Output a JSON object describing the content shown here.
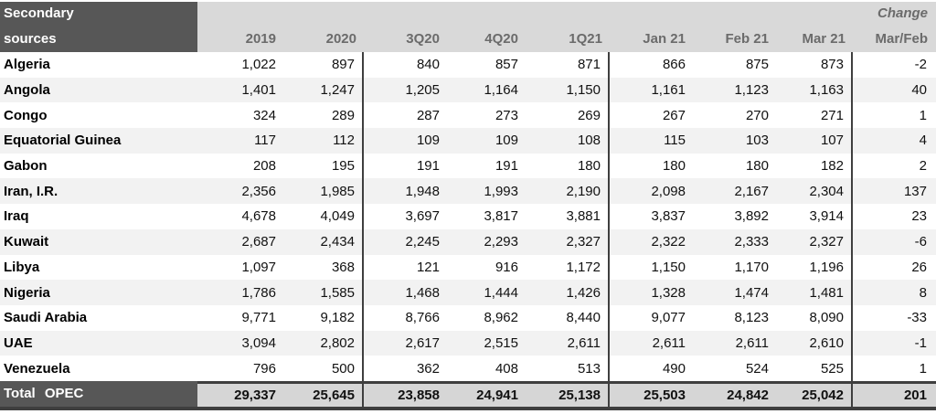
{
  "title": {
    "line1": "Secondary",
    "line2": "sources"
  },
  "change_header": {
    "line1": "Change",
    "line2": "Mar/Feb"
  },
  "columns": [
    "2019",
    "2020",
    "3Q20",
    "4Q20",
    "1Q21",
    "Jan 21",
    "Feb 21",
    "Mar 21"
  ],
  "rows": [
    {
      "country": "Algeria",
      "values": [
        "1,022",
        "897",
        "840",
        "857",
        "871",
        "866",
        "875",
        "873",
        "-2"
      ]
    },
    {
      "country": "Angola",
      "values": [
        "1,401",
        "1,247",
        "1,205",
        "1,164",
        "1,150",
        "1,161",
        "1,123",
        "1,163",
        "40"
      ]
    },
    {
      "country": "Congo",
      "values": [
        "324",
        "289",
        "287",
        "273",
        "269",
        "267",
        "270",
        "271",
        "1"
      ]
    },
    {
      "country": "Equatorial Guinea",
      "values": [
        "117",
        "112",
        "109",
        "109",
        "108",
        "115",
        "103",
        "107",
        "4"
      ]
    },
    {
      "country": "Gabon",
      "values": [
        "208",
        "195",
        "191",
        "191",
        "180",
        "180",
        "180",
        "182",
        "2"
      ]
    },
    {
      "country": "Iran, I.R.",
      "values": [
        "2,356",
        "1,985",
        "1,948",
        "1,993",
        "2,190",
        "2,098",
        "2,167",
        "2,304",
        "137"
      ]
    },
    {
      "country": "Iraq",
      "values": [
        "4,678",
        "4,049",
        "3,697",
        "3,817",
        "3,881",
        "3,837",
        "3,892",
        "3,914",
        "23"
      ]
    },
    {
      "country": "Kuwait",
      "values": [
        "2,687",
        "2,434",
        "2,245",
        "2,293",
        "2,327",
        "2,322",
        "2,333",
        "2,327",
        "-6"
      ]
    },
    {
      "country": "Libya",
      "values": [
        "1,097",
        "368",
        "121",
        "916",
        "1,172",
        "1,150",
        "1,170",
        "1,196",
        "26"
      ]
    },
    {
      "country": "Nigeria",
      "values": [
        "1,786",
        "1,585",
        "1,468",
        "1,444",
        "1,426",
        "1,328",
        "1,474",
        "1,481",
        "8"
      ]
    },
    {
      "country": "Saudi Arabia",
      "values": [
        "9,771",
        "9,182",
        "8,766",
        "8,962",
        "8,440",
        "9,077",
        "8,123",
        "8,090",
        "-33"
      ]
    },
    {
      "country": "UAE",
      "values": [
        "3,094",
        "2,802",
        "2,617",
        "2,515",
        "2,611",
        "2,611",
        "2,611",
        "2,610",
        "-1"
      ]
    },
    {
      "country": "Venezuela",
      "values": [
        "796",
        "500",
        "362",
        "408",
        "513",
        "490",
        "524",
        "525",
        "1"
      ]
    }
  ],
  "total": {
    "label": "Total OPEC",
    "values": [
      "29,337",
      "25,645",
      "23,858",
      "24,941",
      "25,138",
      "25,503",
      "24,842",
      "25,042",
      "201"
    ]
  },
  "colors": {
    "header_dark": "#575757",
    "header_band": "#d9d9d9",
    "row_alt": "#f2f2f2",
    "total_band": "#d6d6d6",
    "separator": "#3f3f3f",
    "header_text": "#6b6b6b"
  }
}
